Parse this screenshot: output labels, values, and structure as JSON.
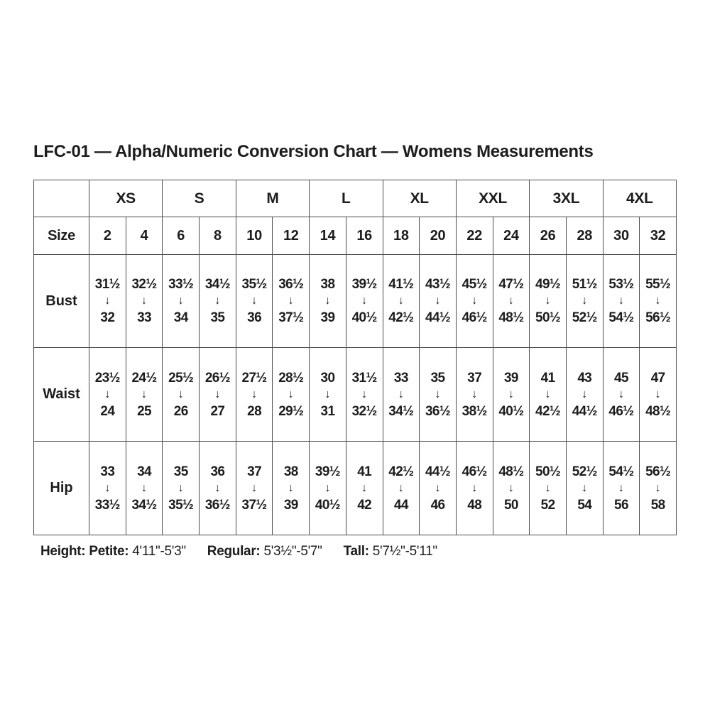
{
  "chart_data": {
    "type": "table",
    "title": "LFC-01 — Alpha/Numeric Conversion Chart — Womens Measurements",
    "corner_label": "",
    "size_label": "Size",
    "alpha_sizes": [
      "XS",
      "S",
      "M",
      "L",
      "XL",
      "XXL",
      "3XL",
      "4XL"
    ],
    "numeric_sizes": [
      "2",
      "4",
      "6",
      "8",
      "10",
      "12",
      "14",
      "16",
      "18",
      "20",
      "22",
      "24",
      "26",
      "28",
      "30",
      "32"
    ],
    "arrow": "↓",
    "measurement_rows": [
      {
        "label": "Bust",
        "cells": [
          {
            "from": "31½",
            "to": "32"
          },
          {
            "from": "32½",
            "to": "33"
          },
          {
            "from": "33½",
            "to": "34"
          },
          {
            "from": "34½",
            "to": "35"
          },
          {
            "from": "35½",
            "to": "36"
          },
          {
            "from": "36½",
            "to": "37½"
          },
          {
            "from": "38",
            "to": "39"
          },
          {
            "from": "39½",
            "to": "40½"
          },
          {
            "from": "41½",
            "to": "42½"
          },
          {
            "from": "43½",
            "to": "44½"
          },
          {
            "from": "45½",
            "to": "46½"
          },
          {
            "from": "47½",
            "to": "48½"
          },
          {
            "from": "49½",
            "to": "50½"
          },
          {
            "from": "51½",
            "to": "52½"
          },
          {
            "from": "53½",
            "to": "54½"
          },
          {
            "from": "55½",
            "to": "56½"
          }
        ]
      },
      {
        "label": "Waist",
        "cells": [
          {
            "from": "23½",
            "to": "24"
          },
          {
            "from": "24½",
            "to": "25"
          },
          {
            "from": "25½",
            "to": "26"
          },
          {
            "from": "26½",
            "to": "27"
          },
          {
            "from": "27½",
            "to": "28"
          },
          {
            "from": "28½",
            "to": "29½"
          },
          {
            "from": "30",
            "to": "31"
          },
          {
            "from": "31½",
            "to": "32½"
          },
          {
            "from": "33",
            "to": "34½"
          },
          {
            "from": "35",
            "to": "36½"
          },
          {
            "from": "37",
            "to": "38½"
          },
          {
            "from": "39",
            "to": "40½"
          },
          {
            "from": "41",
            "to": "42½"
          },
          {
            "from": "43",
            "to": "44½"
          },
          {
            "from": "45",
            "to": "46½"
          },
          {
            "from": "47",
            "to": "48½"
          }
        ]
      },
      {
        "label": "Hip",
        "cells": [
          {
            "from": "33",
            "to": "33½"
          },
          {
            "from": "34",
            "to": "34½"
          },
          {
            "from": "35",
            "to": "35½"
          },
          {
            "from": "36",
            "to": "36½"
          },
          {
            "from": "37",
            "to": "37½"
          },
          {
            "from": "38",
            "to": "39"
          },
          {
            "from": "39½",
            "to": "40½"
          },
          {
            "from": "41",
            "to": "42"
          },
          {
            "from": "42½",
            "to": "44"
          },
          {
            "from": "44½",
            "to": "46"
          },
          {
            "from": "46½",
            "to": "48"
          },
          {
            "from": "48½",
            "to": "50"
          },
          {
            "from": "50½",
            "to": "52"
          },
          {
            "from": "52½",
            "to": "54"
          },
          {
            "from": "54½",
            "to": "56"
          },
          {
            "from": "56½",
            "to": "58"
          }
        ]
      }
    ]
  },
  "footer": {
    "height_label": "Height:",
    "petite_label": "Petite:",
    "petite_value": "4'11\"-5'3\"",
    "regular_label": "Regular:",
    "regular_value": "5'3½\"-5'7\"",
    "tall_label": "Tall:",
    "tall_value": "5'7½\"-5'11\""
  },
  "colors": {
    "background": "#ffffff",
    "header_bg": "#e9e9e9",
    "border": "#4b4b4d",
    "text": "#1d1d1f"
  }
}
